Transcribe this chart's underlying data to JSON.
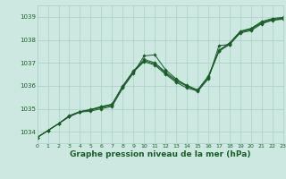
{
  "bg_color": "#cce8e0",
  "grid_color": "#aacfc8",
  "line_color": "#1a5e28",
  "marker_color": "#1a5e28",
  "xlabel": "Graphe pression niveau de la mer (hPa)",
  "xlabel_fontsize": 6.5,
  "xlim": [
    0,
    23
  ],
  "ylim": [
    1033.5,
    1039.5
  ],
  "yticks": [
    1034,
    1035,
    1036,
    1037,
    1038,
    1039
  ],
  "xticks": [
    0,
    1,
    2,
    3,
    4,
    5,
    6,
    7,
    8,
    9,
    10,
    11,
    12,
    13,
    14,
    15,
    16,
    17,
    18,
    19,
    20,
    21,
    22,
    23
  ],
  "series": [
    [
      1033.75,
      1034.05,
      1034.35,
      1034.65,
      1034.85,
      1034.9,
      1035.0,
      1035.1,
      1035.9,
      1036.55,
      1037.3,
      1037.35,
      1036.7,
      1036.3,
      1036.0,
      1035.75,
      1036.3,
      1037.75,
      1037.8,
      1038.3,
      1038.4,
      1038.7,
      1038.85,
      1038.9
    ],
    [
      1033.75,
      1034.05,
      1034.35,
      1034.68,
      1034.87,
      1034.95,
      1035.05,
      1035.15,
      1035.95,
      1036.6,
      1037.05,
      1036.9,
      1036.5,
      1036.15,
      1035.9,
      1035.78,
      1036.35,
      1037.5,
      1037.8,
      1038.33,
      1038.45,
      1038.73,
      1038.87,
      1038.92
    ],
    [
      1033.75,
      1034.05,
      1034.35,
      1034.68,
      1034.87,
      1034.95,
      1035.08,
      1035.18,
      1035.97,
      1036.62,
      1037.1,
      1036.95,
      1036.55,
      1036.2,
      1035.98,
      1035.8,
      1036.38,
      1037.52,
      1037.83,
      1038.35,
      1038.48,
      1038.76,
      1038.9,
      1038.95
    ],
    [
      1033.75,
      1034.05,
      1034.35,
      1034.7,
      1034.88,
      1034.97,
      1035.1,
      1035.2,
      1036.0,
      1036.65,
      1037.15,
      1037.0,
      1036.6,
      1036.25,
      1036.02,
      1035.82,
      1036.42,
      1037.55,
      1037.87,
      1038.38,
      1038.5,
      1038.8,
      1038.93,
      1038.98
    ]
  ]
}
